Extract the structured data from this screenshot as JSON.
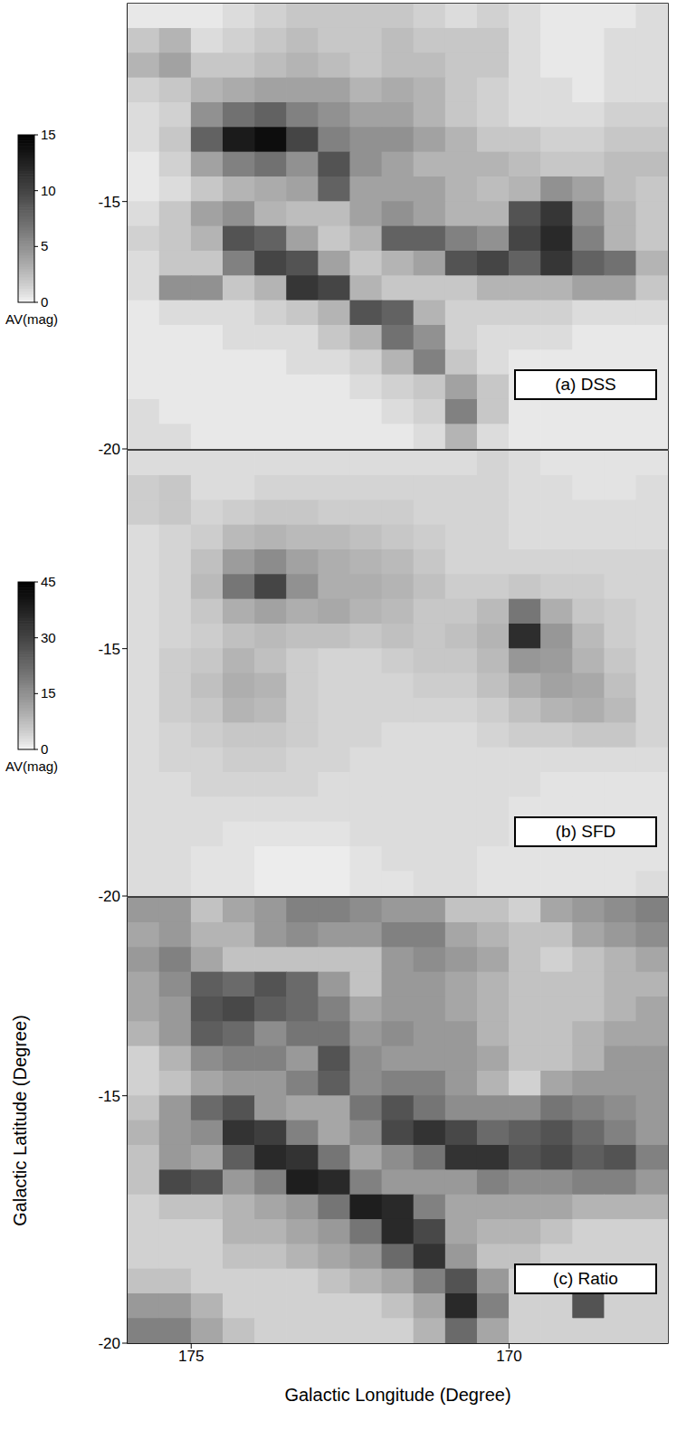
{
  "chart_data": [
    {
      "type": "heatmap",
      "title": "(a) DSS",
      "xlim": [
        176,
        167.5
      ],
      "ylim": [
        -20,
        -11
      ],
      "yticks": [
        -20,
        -15
      ],
      "tick_labels": "y",
      "cell_lon": [
        175.75,
        175.25,
        174.75,
        174.25,
        173.75,
        173.25,
        172.75,
        172.25,
        171.75,
        171.25,
        170.75,
        170.25,
        169.75,
        169.25,
        168.75,
        168.25,
        167.75
      ],
      "cell_lat": [
        -11.25,
        -11.75,
        -12.25,
        -12.75,
        -13.25,
        -13.75,
        -14.25,
        -14.75,
        -15.25,
        -15.75,
        -16.25,
        -16.75,
        -17.25,
        -17.75,
        -18.25,
        -18.75,
        -19.25,
        -19.75
      ],
      "cells": [
        [
          0.5,
          0.5,
          0.5,
          1,
          1.5,
          2,
          2,
          2,
          2,
          1.5,
          1,
          1.5,
          1,
          0.5,
          0.5,
          0.5,
          1
        ],
        [
          2,
          3,
          1,
          1.5,
          2,
          2.5,
          2,
          2,
          2.5,
          2,
          2,
          2,
          1,
          0.5,
          0.5,
          1,
          1
        ],
        [
          3,
          4,
          2,
          2,
          2.5,
          3,
          2.5,
          2,
          2.5,
          2.5,
          2,
          2,
          1,
          0.5,
          0.5,
          1,
          1
        ],
        [
          1.5,
          2,
          3,
          3.5,
          4,
          4,
          4,
          3,
          3.5,
          3,
          2,
          1.5,
          1,
          1,
          0.5,
          1,
          1
        ],
        [
          1,
          1.5,
          5,
          7,
          8,
          6,
          5,
          4,
          4,
          3,
          2,
          1.5,
          1,
          1,
          1,
          1.5,
          1.5
        ],
        [
          1,
          2,
          8,
          13,
          14,
          10,
          6,
          5,
          5,
          4,
          3,
          2,
          2,
          1.5,
          1.5,
          2,
          2
        ],
        [
          0.5,
          1.5,
          4,
          6,
          7,
          5,
          9,
          5,
          4,
          3,
          3,
          3,
          2.5,
          2,
          2,
          2.5,
          2.5
        ],
        [
          0.5,
          1,
          2,
          3,
          3.5,
          4,
          8,
          4,
          4,
          4,
          3,
          2.5,
          3,
          5,
          4,
          2.5,
          2
        ],
        [
          1,
          2,
          4,
          5,
          3,
          2.5,
          2.5,
          4,
          5,
          4,
          3,
          3,
          9,
          11,
          5,
          3,
          2
        ],
        [
          1.5,
          2,
          3,
          9,
          8,
          4,
          2,
          3,
          8,
          8,
          6,
          5,
          10,
          12,
          6,
          3,
          2
        ],
        [
          1,
          2,
          2,
          6,
          10,
          9,
          4,
          2,
          3,
          4,
          9,
          10,
          8,
          11,
          8,
          7,
          3
        ],
        [
          1,
          5,
          5,
          2,
          3,
          11,
          10,
          3,
          2,
          2,
          2,
          3,
          3,
          3,
          4,
          4,
          2
        ],
        [
          0.5,
          1,
          1,
          1,
          1.5,
          2,
          3,
          9,
          8,
          3,
          1.5,
          1.5,
          1.5,
          1.5,
          1,
          1,
          1
        ],
        [
          0.5,
          0.5,
          0.5,
          1,
          1,
          1,
          2,
          3,
          7,
          5,
          1.5,
          1,
          1,
          1,
          0.5,
          0.5,
          0.5
        ],
        [
          0.5,
          0.5,
          0.5,
          0.5,
          0.5,
          1,
          1,
          1.5,
          3,
          6,
          2,
          1,
          0.5,
          0.5,
          0.5,
          0.5,
          0.5
        ],
        [
          0.5,
          0.5,
          0.5,
          0.5,
          0.5,
          0.5,
          0.5,
          1,
          1.5,
          2,
          4,
          2,
          0.5,
          0.5,
          0.5,
          0.5,
          0.5
        ],
        [
          1,
          0.5,
          0.5,
          0.5,
          0.5,
          0.5,
          0.5,
          0.5,
          1,
          1.5,
          6,
          2,
          0.5,
          0.5,
          0.5,
          0.5,
          0.5
        ],
        [
          1,
          1,
          0.5,
          0.5,
          0.5,
          0.5,
          0.5,
          0.5,
          0.5,
          1,
          3,
          1,
          0.5,
          0.5,
          0.5,
          0.5,
          0.5
        ]
      ],
      "colorbar": {
        "label": "AV(mag)",
        "range": [
          0,
          15
        ],
        "ticks": [
          0,
          5,
          10,
          15
        ]
      }
    },
    {
      "type": "heatmap",
      "title": "(b) SFD",
      "xlim": [
        176,
        167.5
      ],
      "ylim": [
        -20,
        -11
      ],
      "yticks": [
        -20,
        -15
      ],
      "tick_labels": "y",
      "cell_lon": [
        175.75,
        175.25,
        174.75,
        174.25,
        173.75,
        173.25,
        172.75,
        172.25,
        171.75,
        171.25,
        170.75,
        170.25,
        169.75,
        169.25,
        168.75,
        168.25,
        167.75
      ],
      "cell_lat": [
        -11.25,
        -11.75,
        -12.25,
        -12.75,
        -13.25,
        -13.75,
        -14.25,
        -14.75,
        -15.25,
        -15.75,
        -16.25,
        -16.75,
        -17.25,
        -17.75,
        -18.25,
        -18.75,
        -19.25,
        -19.75
      ],
      "cells": [
        [
          3,
          3,
          3,
          3,
          3,
          3,
          3,
          3,
          3,
          3,
          3,
          4,
          3,
          2,
          2,
          2,
          2
        ],
        [
          5,
          6,
          3,
          3,
          4,
          4,
          4,
          4,
          4,
          4,
          4,
          4,
          3,
          3,
          2,
          2,
          3
        ],
        [
          5,
          6,
          4,
          5,
          6,
          6,
          5,
          5,
          5,
          4,
          4,
          4,
          3,
          3,
          3,
          3,
          3
        ],
        [
          3,
          4,
          5,
          8,
          9,
          8,
          8,
          7,
          6,
          5,
          4,
          4,
          3,
          3,
          3,
          3,
          3
        ],
        [
          3,
          4,
          7,
          13,
          16,
          12,
          10,
          9,
          8,
          6,
          4,
          4,
          4,
          4,
          4,
          4,
          4
        ],
        [
          3,
          4,
          8,
          20,
          30,
          15,
          10,
          10,
          9,
          7,
          5,
          5,
          6,
          5,
          5,
          4,
          4
        ],
        [
          3,
          4,
          6,
          10,
          12,
          10,
          11,
          9,
          8,
          6,
          6,
          8,
          20,
          10,
          6,
          5,
          4
        ],
        [
          3,
          4,
          5,
          7,
          8,
          7,
          7,
          6,
          7,
          6,
          7,
          9,
          35,
          14,
          8,
          5,
          4
        ],
        [
          3,
          5,
          6,
          9,
          7,
          5,
          4,
          4,
          5,
          6,
          6,
          8,
          14,
          13,
          9,
          6,
          4
        ],
        [
          3,
          5,
          7,
          10,
          9,
          5,
          4,
          4,
          4,
          5,
          5,
          7,
          10,
          12,
          11,
          7,
          4
        ],
        [
          3,
          5,
          6,
          9,
          8,
          5,
          4,
          4,
          4,
          4,
          4,
          5,
          7,
          9,
          10,
          8,
          4
        ],
        [
          3,
          4,
          5,
          6,
          6,
          5,
          4,
          4,
          3,
          3,
          3,
          4,
          5,
          5,
          6,
          6,
          4
        ],
        [
          3,
          4,
          4,
          5,
          5,
          4,
          4,
          3,
          3,
          3,
          3,
          3,
          3,
          3,
          3,
          3,
          3
        ],
        [
          3,
          3,
          4,
          4,
          4,
          4,
          3,
          3,
          3,
          3,
          3,
          3,
          3,
          2,
          2,
          2,
          2
        ],
        [
          3,
          3,
          3,
          3,
          3,
          3,
          3,
          3,
          3,
          3,
          3,
          3,
          2,
          2,
          2,
          2,
          2
        ],
        [
          3,
          3,
          3,
          2,
          2,
          2,
          2,
          3,
          3,
          3,
          3,
          3,
          2,
          2,
          2,
          2,
          2
        ],
        [
          3,
          3,
          2,
          2,
          1,
          1,
          1,
          2,
          3,
          3,
          3,
          2,
          2,
          2,
          2,
          2,
          2
        ],
        [
          3,
          3,
          2,
          2,
          1,
          1,
          1,
          2,
          2,
          3,
          3,
          2,
          2,
          2,
          2,
          2,
          3
        ]
      ],
      "colorbar": {
        "label": "AV(mag)",
        "range": [
          0,
          45
        ],
        "ticks": [
          0,
          15,
          30,
          45
        ]
      }
    },
    {
      "type": "heatmap",
      "title": "(c) Ratio",
      "x_label": "Galactic Longitude (Degree)",
      "y_label": "Galactic Latitude (Degree)",
      "xlim": [
        176,
        167.5
      ],
      "ylim": [
        -20,
        -11
      ],
      "xticks": [
        175,
        170
      ],
      "yticks": [
        -20,
        -15
      ],
      "cell_lon": [
        175.75,
        175.25,
        174.75,
        174.25,
        173.75,
        173.25,
        172.75,
        172.25,
        171.75,
        171.25,
        170.75,
        170.25,
        169.75,
        169.25,
        168.75,
        168.25,
        167.75
      ],
      "cell_lat": [
        -11.25,
        -11.75,
        -12.25,
        -12.75,
        -13.25,
        -13.75,
        -14.25,
        -14.75,
        -15.25,
        -15.75,
        -16.25,
        -16.75,
        -17.25,
        -17.75,
        -18.25,
        -18.75,
        -19.25,
        -19.75
      ],
      "cells": [
        [
          0.6,
          0.6,
          0.3,
          0.5,
          0.6,
          0.8,
          0.8,
          0.7,
          0.6,
          0.6,
          0.3,
          0.3,
          0.2,
          0.5,
          0.6,
          0.7,
          0.8
        ],
        [
          0.5,
          0.6,
          0.4,
          0.4,
          0.6,
          0.7,
          0.6,
          0.6,
          0.8,
          0.8,
          0.5,
          0.4,
          0.3,
          0.3,
          0.5,
          0.6,
          0.7
        ],
        [
          0.6,
          0.8,
          0.5,
          0.3,
          0.3,
          0.3,
          0.3,
          0.3,
          0.6,
          0.7,
          0.6,
          0.5,
          0.3,
          0.2,
          0.3,
          0.4,
          0.5
        ],
        [
          0.5,
          0.7,
          1.1,
          1.0,
          1.2,
          1.0,
          0.6,
          0.3,
          0.6,
          0.6,
          0.5,
          0.4,
          0.3,
          0.3,
          0.3,
          0.4,
          0.4
        ],
        [
          0.5,
          0.6,
          1.2,
          1.3,
          1.1,
          1.0,
          0.8,
          0.5,
          0.6,
          0.6,
          0.5,
          0.4,
          0.3,
          0.3,
          0.3,
          0.4,
          0.5
        ],
        [
          0.4,
          0.6,
          1.1,
          1.0,
          0.7,
          0.9,
          0.9,
          0.6,
          0.7,
          0.6,
          0.6,
          0.4,
          0.3,
          0.3,
          0.4,
          0.5,
          0.5
        ],
        [
          0.2,
          0.4,
          0.7,
          0.8,
          0.8,
          0.6,
          1.2,
          0.7,
          0.6,
          0.6,
          0.6,
          0.5,
          0.3,
          0.3,
          0.4,
          0.6,
          0.6
        ],
        [
          0.2,
          0.3,
          0.5,
          0.6,
          0.6,
          0.8,
          1.1,
          0.7,
          0.8,
          0.8,
          0.6,
          0.4,
          0.2,
          0.5,
          0.6,
          0.6,
          0.6
        ],
        [
          0.3,
          0.6,
          1.0,
          1.2,
          0.6,
          0.5,
          0.5,
          0.9,
          1.2,
          0.9,
          0.7,
          0.7,
          0.7,
          0.9,
          0.8,
          0.7,
          0.6
        ],
        [
          0.4,
          0.6,
          0.7,
          1.5,
          1.4,
          0.8,
          0.5,
          0.7,
          1.3,
          1.5,
          1.3,
          1.0,
          1.1,
          1.2,
          1.0,
          0.8,
          0.6
        ],
        [
          0.3,
          0.6,
          0.5,
          1.1,
          1.6,
          1.5,
          0.9,
          0.5,
          0.7,
          0.9,
          1.5,
          1.5,
          1.2,
          1.3,
          1.1,
          1.2,
          0.8
        ],
        [
          0.3,
          1.3,
          1.2,
          0.6,
          0.8,
          1.7,
          1.6,
          0.8,
          0.6,
          0.6,
          0.6,
          0.8,
          0.7,
          0.7,
          0.8,
          0.8,
          0.6
        ],
        [
          0.2,
          0.3,
          0.3,
          0.4,
          0.5,
          0.6,
          0.9,
          1.7,
          1.6,
          0.8,
          0.5,
          0.5,
          0.5,
          0.5,
          0.4,
          0.4,
          0.4
        ],
        [
          0.2,
          0.2,
          0.2,
          0.4,
          0.4,
          0.5,
          0.6,
          0.9,
          1.6,
          1.3,
          0.5,
          0.4,
          0.4,
          0.3,
          0.2,
          0.2,
          0.2
        ],
        [
          0.2,
          0.2,
          0.2,
          0.3,
          0.3,
          0.4,
          0.5,
          0.6,
          1.0,
          1.5,
          0.6,
          0.3,
          0.3,
          0.2,
          0.2,
          0.2,
          0.2
        ],
        [
          0.3,
          0.3,
          0.2,
          0.2,
          0.2,
          0.2,
          0.3,
          0.4,
          0.5,
          0.8,
          1.2,
          0.6,
          0.2,
          0.2,
          0.2,
          0.2,
          0.2
        ],
        [
          0.6,
          0.6,
          0.4,
          0.2,
          0.2,
          0.2,
          0.2,
          0.2,
          0.3,
          0.5,
          1.6,
          0.8,
          0.2,
          0.2,
          1.2,
          0.2,
          0.2
        ],
        [
          0.8,
          0.8,
          0.5,
          0.3,
          0.2,
          0.2,
          0.2,
          0.2,
          0.2,
          0.4,
          1.0,
          0.5,
          0.2,
          0.2,
          0.2,
          0.2,
          0.2
        ]
      ],
      "zlim": [
        0,
        2
      ]
    }
  ]
}
